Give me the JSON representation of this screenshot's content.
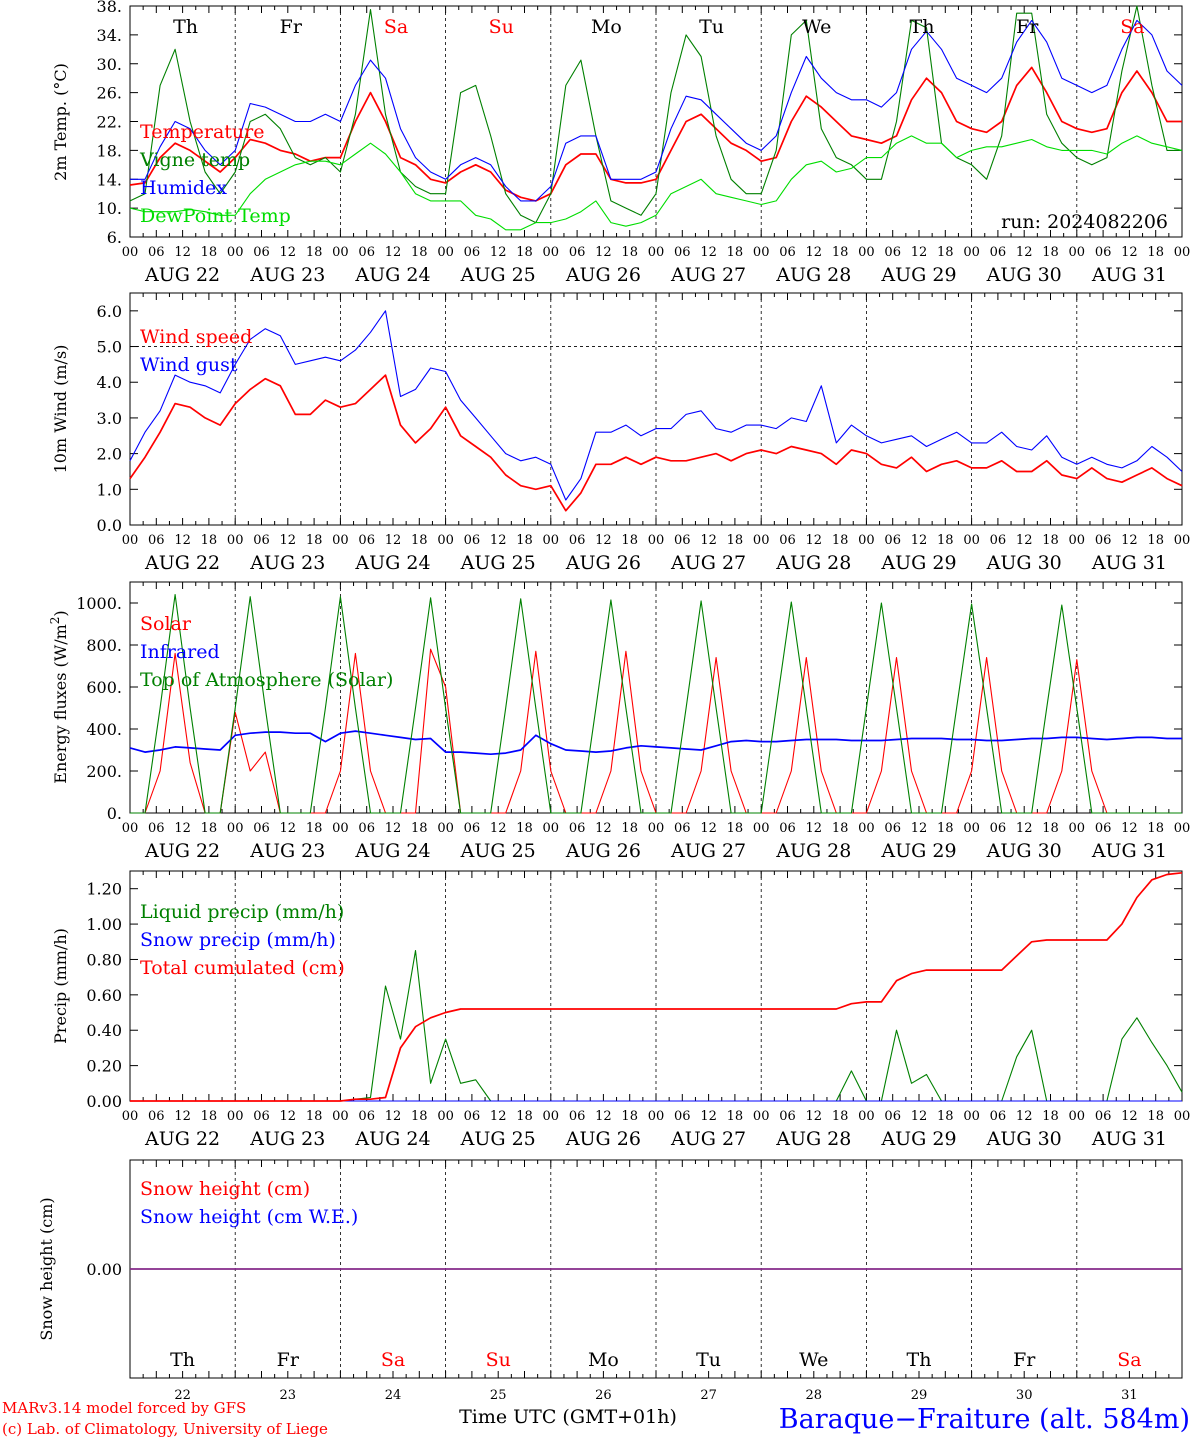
{
  "chart_data": [
    {
      "type": "line",
      "ylabel": "2m Temp. (°C)",
      "ylim": [
        6,
        38
      ],
      "yticks": [
        "6.",
        "10.",
        "14.",
        "18.",
        "22.",
        "26.",
        "30.",
        "34.",
        "38."
      ],
      "days": [
        {
          "label": "Th",
          "weekend": false
        },
        {
          "label": "Fr",
          "weekend": false
        },
        {
          "label": "Sa",
          "weekend": true
        },
        {
          "label": "Su",
          "weekend": true
        },
        {
          "label": "Mo",
          "weekend": false
        },
        {
          "label": "Tu",
          "weekend": false
        },
        {
          "label": "We",
          "weekend": false
        },
        {
          "label": "Th",
          "weekend": false
        },
        {
          "label": "Fr",
          "weekend": false
        },
        {
          "label": "Sa",
          "weekend": true
        }
      ],
      "run_label": "run: 2024082206",
      "series": [
        {
          "name": "Temperature",
          "color": "#ff0000",
          "values": [
            13.2,
            13.5,
            17,
            19,
            18,
            16.5,
            15,
            17,
            19.5,
            19,
            18,
            17.5,
            16.5,
            17,
            17,
            22,
            26,
            22,
            17,
            16,
            14,
            13.5,
            15,
            16,
            15,
            12.5,
            11.5,
            11,
            12,
            16,
            17.5,
            17.5,
            14,
            13.5,
            13.5,
            14,
            18,
            22,
            23,
            21,
            19,
            18,
            16.5,
            17,
            22,
            25.5,
            24,
            22,
            20,
            19.5,
            19,
            20,
            25,
            28,
            26,
            22,
            21,
            20.5,
            22,
            27,
            29.5,
            26,
            22,
            21,
            20.5,
            21,
            26,
            29,
            26,
            22,
            22
          ]
        },
        {
          "name": "Vigne temp",
          "color": "#008000",
          "values": [
            11,
            12,
            27,
            32,
            22,
            15,
            12,
            15,
            22,
            23,
            21,
            17,
            16,
            17,
            15,
            23,
            37.5,
            23,
            15,
            13,
            12,
            12,
            26,
            27,
            20,
            12,
            9,
            8,
            12,
            27,
            30.5,
            20,
            11,
            10,
            9,
            12,
            26,
            34,
            31,
            20,
            14,
            12,
            12,
            18,
            34,
            36,
            21,
            17,
            16,
            14,
            14,
            22,
            36,
            35,
            19,
            17,
            16,
            14,
            20,
            37,
            37,
            23,
            19,
            17,
            16,
            17,
            29,
            38,
            27,
            18,
            18
          ]
        },
        {
          "name": "Humidex",
          "color": "#0000ff",
          "values": [
            14,
            14,
            18.5,
            22,
            21,
            18,
            16,
            18,
            24.5,
            24,
            23,
            22,
            22,
            23,
            22,
            27,
            30.5,
            28,
            21,
            17,
            15,
            14,
            16,
            17,
            16,
            13,
            11,
            11,
            13,
            19,
            20,
            20,
            14,
            14,
            14,
            15,
            21,
            25.5,
            25,
            23,
            21,
            19,
            18,
            20,
            26,
            31,
            28,
            26,
            25,
            25,
            24,
            26,
            32,
            34.5,
            32,
            28,
            27,
            26,
            28,
            33,
            36,
            33,
            28,
            27,
            26,
            27,
            32,
            36,
            34,
            29,
            27
          ]
        },
        {
          "name": "DewPoint Temp",
          "color": "#00dd00",
          "values": [
            10,
            9.5,
            9.5,
            9.5,
            9.8,
            9.5,
            9,
            9,
            12,
            14,
            15,
            16,
            16.5,
            16.5,
            16,
            17.5,
            19,
            17.5,
            15,
            12,
            11,
            11,
            11,
            9,
            8.5,
            7,
            7,
            8,
            8,
            8.5,
            9.5,
            11,
            8,
            7.5,
            8,
            9,
            12,
            13,
            14,
            12,
            11.5,
            11,
            10.5,
            11,
            14,
            16,
            16.5,
            15,
            15.5,
            17,
            17,
            19,
            20,
            19,
            19,
            17,
            18,
            18.5,
            18.5,
            19,
            19.5,
            18.5,
            18,
            18,
            18,
            17.5,
            19,
            20,
            19,
            18.5,
            18
          ]
        }
      ]
    },
    {
      "type": "line",
      "ylabel": "10m Wind (m/s)",
      "ylim": [
        0,
        6.5
      ],
      "yticks": [
        "0.0",
        "1.0",
        "2.0",
        "3.0",
        "4.0",
        "5.0",
        "6.0"
      ],
      "series": [
        {
          "name": "Wind speed",
          "color": "#ff0000",
          "values": [
            1.3,
            1.9,
            2.6,
            3.4,
            3.3,
            3,
            2.8,
            3.4,
            3.8,
            4.1,
            3.9,
            3.1,
            3.1,
            3.5,
            3.3,
            3.4,
            3.8,
            4.2,
            2.8,
            2.3,
            2.7,
            3.3,
            2.5,
            2.2,
            1.9,
            1.4,
            1.1,
            1.0,
            1.1,
            0.4,
            0.9,
            1.7,
            1.7,
            1.9,
            1.7,
            1.9,
            1.8,
            1.8,
            1.9,
            2.0,
            1.8,
            2.0,
            2.1,
            2.0,
            2.2,
            2.1,
            2.0,
            1.7,
            2.1,
            2.0,
            1.7,
            1.6,
            1.9,
            1.5,
            1.7,
            1.8,
            1.6,
            1.6,
            1.8,
            1.5,
            1.5,
            1.8,
            1.4,
            1.3,
            1.6,
            1.3,
            1.2,
            1.4,
            1.6,
            1.3,
            1.1
          ]
        },
        {
          "name": "Wind gust",
          "color": "#0000ff",
          "values": [
            1.8,
            2.6,
            3.2,
            4.2,
            4.0,
            3.9,
            3.7,
            4.5,
            5.2,
            5.5,
            5.3,
            4.5,
            4.6,
            4.7,
            4.6,
            4.9,
            5.4,
            6.0,
            3.6,
            3.8,
            4.4,
            4.3,
            3.5,
            3.0,
            2.5,
            2.0,
            1.8,
            1.9,
            1.7,
            0.7,
            1.3,
            2.6,
            2.6,
            2.8,
            2.5,
            2.7,
            2.7,
            3.1,
            3.2,
            2.7,
            2.6,
            2.8,
            2.8,
            2.7,
            3.0,
            2.9,
            3.9,
            2.3,
            2.8,
            2.5,
            2.3,
            2.4,
            2.5,
            2.2,
            2.4,
            2.6,
            2.3,
            2.3,
            2.6,
            2.2,
            2.1,
            2.5,
            1.9,
            1.7,
            1.9,
            1.7,
            1.6,
            1.8,
            2.2,
            1.9,
            1.5
          ]
        }
      ]
    },
    {
      "type": "line",
      "ylabel": "Energy fluxes (W/m2)",
      "ylim": [
        0,
        1100
      ],
      "yticks": [
        "0.",
        "200.",
        "400.",
        "600.",
        "800.",
        "1000."
      ],
      "series": [
        {
          "name": "Solar",
          "color": "#ff0000",
          "values": [
            0,
            0,
            200,
            760,
            240,
            0,
            0,
            480,
            200,
            290,
            0,
            0,
            0,
            0,
            200,
            760,
            200,
            0,
            0,
            0,
            780,
            600,
            0,
            0,
            0,
            0,
            200,
            770,
            200,
            0,
            0,
            0,
            200,
            770,
            200,
            0,
            0,
            0,
            200,
            740,
            200,
            0,
            0,
            0,
            200,
            740,
            200,
            0,
            0,
            0,
            200,
            740,
            200,
            0,
            0,
            0,
            200,
            740,
            200,
            0,
            0,
            0,
            200,
            730,
            200,
            0,
            0,
            0,
            0,
            0,
            0
          ]
        },
        {
          "name": "Infrared",
          "color": "#0000ff",
          "values": [
            310,
            290,
            300,
            315,
            310,
            305,
            300,
            370,
            380,
            385,
            385,
            380,
            380,
            340,
            380,
            390,
            380,
            370,
            360,
            350,
            355,
            290,
            290,
            285,
            280,
            285,
            300,
            370,
            330,
            300,
            295,
            290,
            295,
            310,
            320,
            315,
            310,
            305,
            300,
            320,
            340,
            345,
            340,
            340,
            345,
            350,
            350,
            350,
            345,
            345,
            345,
            350,
            355,
            355,
            355,
            350,
            350,
            345,
            345,
            350,
            355,
            355,
            360,
            360,
            355,
            350,
            355,
            360,
            360,
            355,
            355
          ]
        },
        {
          "name": "Top of Atmosphere (Solar)",
          "color": "#008000",
          "values": [
            0,
            0,
            500,
            1040,
            500,
            0,
            0,
            500,
            1030,
            500,
            0,
            0,
            0,
            500,
            1030,
            500,
            0,
            0,
            0,
            500,
            1025,
            500,
            0,
            0,
            0,
            500,
            1020,
            500,
            0,
            0,
            0,
            500,
            1015,
            500,
            0,
            0,
            0,
            500,
            1010,
            500,
            0,
            0,
            0,
            500,
            1005,
            500,
            0,
            0,
            0,
            500,
            1000,
            500,
            0,
            0,
            0,
            500,
            995,
            500,
            0,
            0,
            0,
            500,
            990,
            500,
            0,
            0,
            0,
            0,
            0,
            0,
            0
          ]
        }
      ]
    },
    {
      "type": "line",
      "ylabel": "Precip (mm/h)",
      "ylim": [
        0,
        1.3
      ],
      "yticks": [
        "0.00",
        "0.20",
        "0.40",
        "0.60",
        "0.80",
        "1.00",
        "1.20"
      ],
      "series": [
        {
          "name": "Liquid precip (mm/h)",
          "color": "#008000",
          "values": [
            0,
            0,
            0,
            0,
            0,
            0,
            0,
            0,
            0,
            0,
            0,
            0,
            0,
            0,
            0,
            0.01,
            0.02,
            0.65,
            0.35,
            0.85,
            0.1,
            0.35,
            0.1,
            0.12,
            0,
            0,
            0,
            0,
            0,
            0,
            0,
            0,
            0,
            0,
            0,
            0,
            0,
            0,
            0,
            0,
            0,
            0,
            0,
            0,
            0,
            0,
            0,
            0,
            0.17,
            0,
            0,
            0.4,
            0.1,
            0.15,
            0,
            0,
            0,
            0,
            0,
            0.25,
            0.4,
            0,
            0,
            0,
            0,
            0,
            0.35,
            0.47,
            0.33,
            0.2,
            0.05
          ]
        },
        {
          "name": "Snow precip (mm/h)",
          "color": "#0000ff",
          "values": [
            0,
            0,
            0,
            0,
            0,
            0,
            0,
            0,
            0,
            0,
            0,
            0,
            0,
            0,
            0,
            0,
            0,
            0,
            0,
            0,
            0,
            0,
            0,
            0,
            0,
            0,
            0,
            0,
            0,
            0,
            0,
            0,
            0,
            0,
            0,
            0,
            0,
            0,
            0,
            0,
            0,
            0,
            0,
            0,
            0,
            0,
            0,
            0,
            0,
            0,
            0,
            0,
            0,
            0,
            0,
            0,
            0,
            0,
            0,
            0,
            0,
            0,
            0,
            0,
            0,
            0,
            0,
            0,
            0,
            0,
            0
          ]
        },
        {
          "name": "Total cumulated (cm)",
          "color": "#ff0000",
          "values": [
            0,
            0,
            0,
            0,
            0,
            0,
            0,
            0,
            0,
            0,
            0,
            0,
            0,
            0,
            0,
            0.01,
            0.01,
            0.02,
            0.3,
            0.42,
            0.47,
            0.5,
            0.52,
            0.52,
            0.52,
            0.52,
            0.52,
            0.52,
            0.52,
            0.52,
            0.52,
            0.52,
            0.52,
            0.52,
            0.52,
            0.52,
            0.52,
            0.52,
            0.52,
            0.52,
            0.52,
            0.52,
            0.52,
            0.52,
            0.52,
            0.52,
            0.52,
            0.52,
            0.55,
            0.56,
            0.56,
            0.68,
            0.72,
            0.74,
            0.74,
            0.74,
            0.74,
            0.74,
            0.74,
            0.82,
            0.9,
            0.91,
            0.91,
            0.91,
            0.91,
            0.91,
            1.0,
            1.15,
            1.25,
            1.28,
            1.29
          ]
        }
      ]
    },
    {
      "type": "line",
      "ylabel": "Snow height (cm)",
      "yticks": [
        "0.00"
      ],
      "series": [
        {
          "name": "Snow height (cm)",
          "color": "#ff0000",
          "values": [
            0,
            0
          ]
        },
        {
          "name": "Snow height (cm W.E.)",
          "color": "#0000ff",
          "values": [
            0,
            0
          ]
        }
      ]
    }
  ],
  "xaxis": {
    "hour_ticks": [
      "00",
      "06",
      "12",
      "18"
    ],
    "end_tick": "00",
    "date_labels": [
      "AUG 22",
      "AUG 23",
      "AUG 24",
      "AUG 25",
      "AUG 26",
      "AUG 27",
      "AUG 28",
      "AUG 29",
      "AUG 30",
      "AUG 31"
    ],
    "bottom_day_numbers": [
      "22",
      "23",
      "24",
      "25",
      "26",
      "27",
      "28",
      "29",
      "30",
      "31"
    ],
    "title": "Time UTC (GMT+01h)"
  },
  "footer": {
    "model": "MARv3.14 model forced by GFS",
    "credit": "(c) Lab. of Climatology, University of Liege",
    "station": "Baraque−Fraiture (alt. 584m)"
  },
  "colors": {
    "weekend": "#ff0000",
    "normal": "#000000"
  }
}
